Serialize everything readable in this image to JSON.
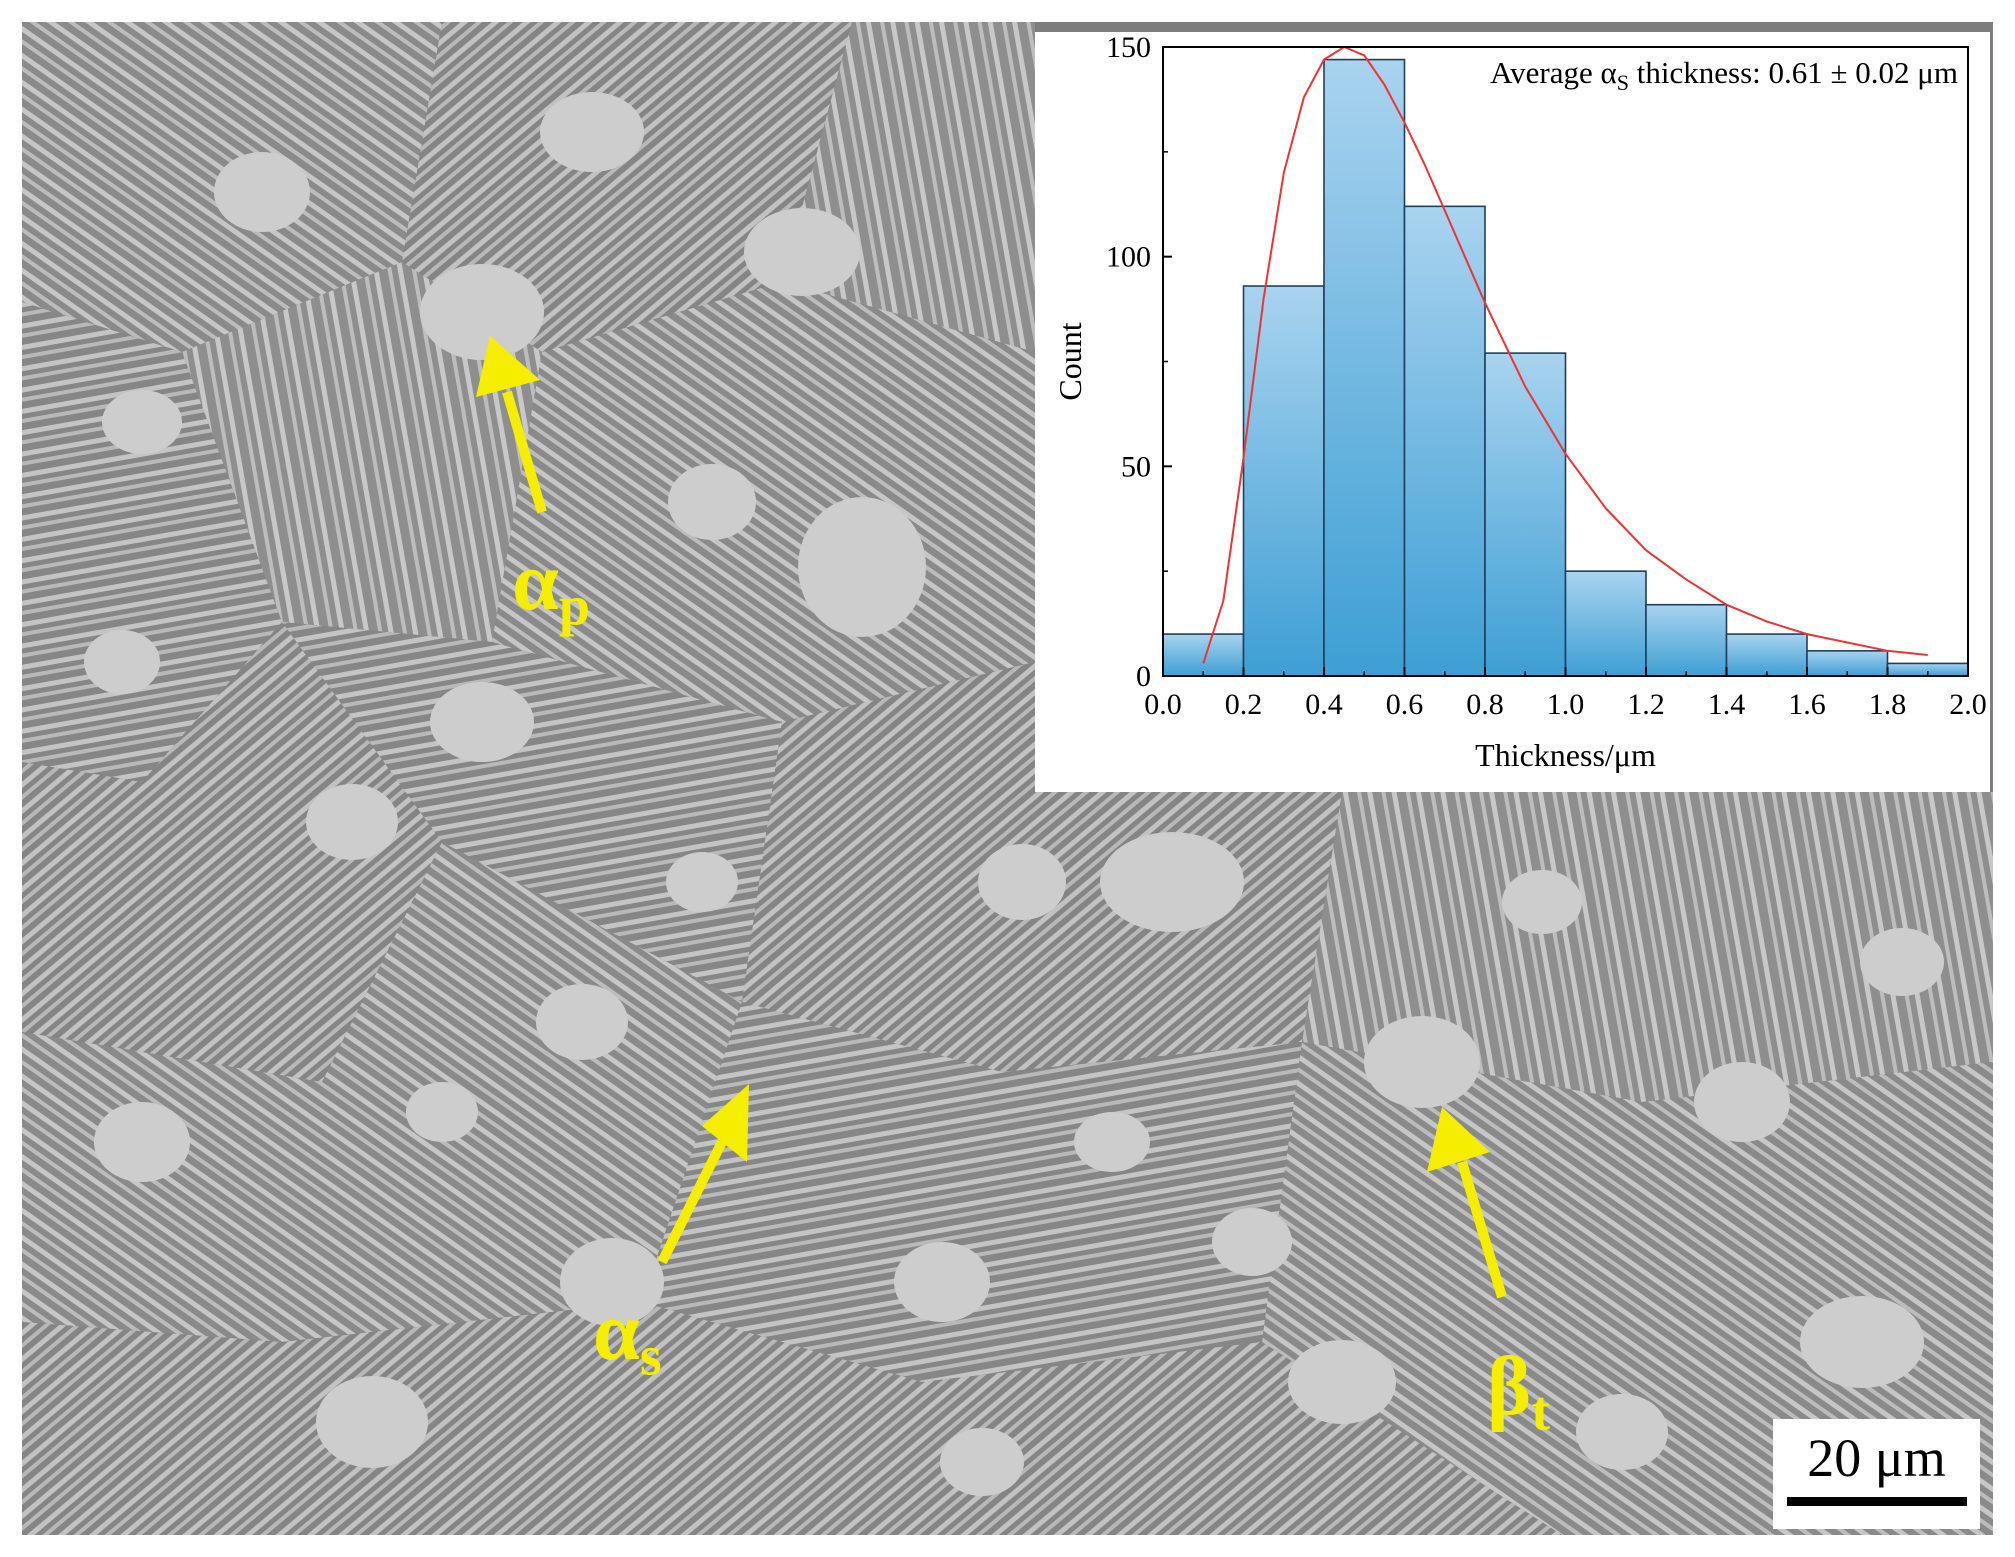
{
  "figure": {
    "labels": {
      "alpha_p": {
        "base": "α",
        "sub": "p"
      },
      "alpha_s": {
        "base": "α",
        "sub": "s"
      },
      "beta_t": {
        "base": "β",
        "sub": "t"
      }
    },
    "scale_bar": "20 μm",
    "colors": {
      "arrow": "#f5ee00",
      "bar_top": "#a9d3ef",
      "bar_bottom": "#3d9fd4",
      "bar_edge": "#1f3f5c",
      "fit_curve": "#ee3333",
      "matrix": "#7d7d7d",
      "grain": "#cdcdcd"
    }
  },
  "chart_data": {
    "type": "bar",
    "annotation": {
      "prefix": "Average α",
      "sub": "S",
      "suffix": " thickness: 0.61 ± 0.02 μm"
    },
    "xlabel": "Thickness/μm",
    "ylabel": "Count",
    "xlim": [
      0.0,
      2.0
    ],
    "ylim": [
      0,
      150
    ],
    "xticks": [
      "0.0",
      "0.2",
      "0.4",
      "0.6",
      "0.8",
      "1.0",
      "1.2",
      "1.4",
      "1.6",
      "1.8",
      "2.0"
    ],
    "yticks": [
      "0",
      "50",
      "100",
      "150"
    ],
    "bins": [
      {
        "x0": 0.0,
        "x1": 0.2,
        "count": 10
      },
      {
        "x0": 0.2,
        "x1": 0.4,
        "count": 93
      },
      {
        "x0": 0.4,
        "x1": 0.6,
        "count": 147
      },
      {
        "x0": 0.6,
        "x1": 0.8,
        "count": 112
      },
      {
        "x0": 0.8,
        "x1": 1.0,
        "count": 77
      },
      {
        "x0": 1.0,
        "x1": 1.2,
        "count": 25
      },
      {
        "x0": 1.2,
        "x1": 1.4,
        "count": 17
      },
      {
        "x0": 1.4,
        "x1": 1.6,
        "count": 10
      },
      {
        "x0": 1.6,
        "x1": 1.8,
        "count": 6
      },
      {
        "x0": 1.8,
        "x1": 2.0,
        "count": 3
      }
    ],
    "fit": {
      "type": "lognormal",
      "x": [
        0.1,
        0.15,
        0.2,
        0.25,
        0.3,
        0.35,
        0.4,
        0.45,
        0.5,
        0.55,
        0.6,
        0.65,
        0.7,
        0.75,
        0.8,
        0.85,
        0.9,
        0.95,
        1.0,
        1.1,
        1.2,
        1.3,
        1.4,
        1.5,
        1.6,
        1.7,
        1.8,
        1.9
      ],
      "y": [
        3,
        18,
        52,
        90,
        120,
        138,
        147,
        150,
        148,
        141,
        132,
        122,
        111,
        100,
        89,
        79,
        69,
        61,
        53,
        40,
        30,
        23,
        17,
        13,
        10,
        8,
        6,
        5
      ]
    }
  }
}
